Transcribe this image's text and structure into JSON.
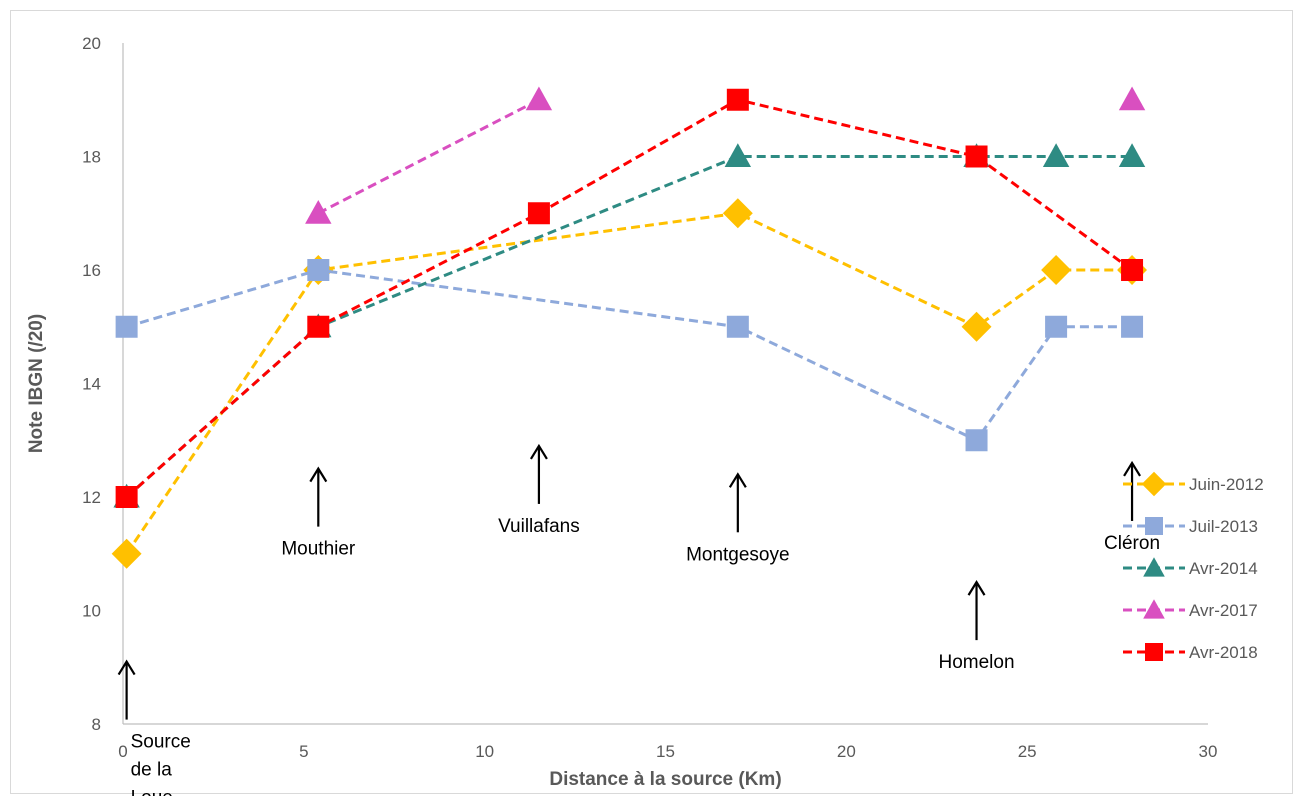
{
  "chart_data": {
    "type": "line",
    "title": "",
    "xlabel": "Distance à la source (Km)",
    "ylabel": "Note IBGN (/20)",
    "xlim": [
      0,
      30
    ],
    "ylim": [
      8,
      20
    ],
    "x_ticks": [
      "0",
      "5",
      "10",
      "15",
      "20",
      "25",
      "30"
    ],
    "y_ticks": [
      "8",
      "10",
      "12",
      "14",
      "16",
      "18",
      "20"
    ],
    "grid": false,
    "legend_position": "right",
    "series": [
      {
        "name": "Juin-2012",
        "color": "#FFC000",
        "marker": "diamond",
        "points": [
          [
            0.1,
            11
          ],
          [
            5.4,
            16
          ],
          [
            17,
            17
          ],
          [
            23.6,
            15
          ],
          [
            25.8,
            16
          ],
          [
            27.9,
            16
          ]
        ]
      },
      {
        "name": "Juil-2013",
        "color": "#8EA9DB",
        "marker": "square",
        "points": [
          [
            0.1,
            15
          ],
          [
            5.4,
            16
          ],
          [
            17,
            15
          ],
          [
            23.6,
            13
          ],
          [
            25.8,
            15
          ],
          [
            27.9,
            15
          ]
        ]
      },
      {
        "name": "Avr-2014",
        "color": "#2E8B83",
        "marker": "triangle",
        "points": [
          [
            0.1,
            12
          ],
          [
            5.4,
            15
          ],
          [
            17,
            18
          ],
          [
            23.6,
            18
          ],
          [
            25.8,
            18
          ],
          [
            27.9,
            18
          ]
        ]
      },
      {
        "name": "Avr-2017",
        "color": "#D94FC0",
        "marker": "triangle",
        "segments": [
          [
            [
              5.4,
              17
            ],
            [
              11.5,
              19
            ]
          ],
          [
            [
              27.9,
              19
            ]
          ]
        ]
      },
      {
        "name": "Avr-2018",
        "color": "#FF0000",
        "marker": "square",
        "points": [
          [
            0.1,
            12
          ],
          [
            5.4,
            15
          ],
          [
            11.5,
            17
          ],
          [
            17,
            19
          ],
          [
            23.6,
            18
          ],
          [
            27.9,
            16
          ]
        ]
      }
    ],
    "annotations": [
      {
        "text": "Source de la Loue",
        "lines": [
          "Source",
          "de la",
          "Loue"
        ],
        "x": 0.1,
        "y": 9.1
      },
      {
        "text": "Mouthier",
        "lines": [
          "Mouthier"
        ],
        "x": 5.4,
        "y": 12.5
      },
      {
        "text": "Vuillafans",
        "lines": [
          "Vuillafans"
        ],
        "x": 11.5,
        "y": 12.9
      },
      {
        "text": "Montgesoye",
        "lines": [
          "Montgesoye"
        ],
        "x": 17,
        "y": 12.4
      },
      {
        "text": "Homelon",
        "lines": [
          "Homelon"
        ],
        "x": 23.6,
        "y": 10.5
      },
      {
        "text": "Cléron",
        "lines": [
          "Cléron"
        ],
        "x": 27.9,
        "y": 12.6
      }
    ]
  }
}
